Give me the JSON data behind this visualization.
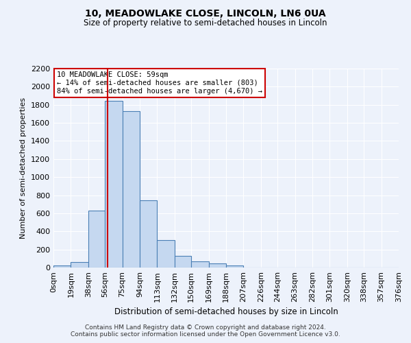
{
  "title": "10, MEADOWLAKE CLOSE, LINCOLN, LN6 0UA",
  "subtitle": "Size of property relative to semi-detached houses in Lincoln",
  "xlabel": "Distribution of semi-detached houses by size in Lincoln",
  "ylabel": "Number of semi-detached properties",
  "bar_color": "#c5d8f0",
  "bar_edge_color": "#4a7fb5",
  "bin_edges": [
    0,
    19,
    38,
    56,
    75,
    94,
    113,
    132,
    150,
    169,
    188,
    207,
    226,
    244,
    263,
    282,
    301,
    320,
    338,
    357,
    376
  ],
  "bin_labels": [
    "0sqm",
    "19sqm",
    "38sqm",
    "56sqm",
    "75sqm",
    "94sqm",
    "113sqm",
    "132sqm",
    "150sqm",
    "169sqm",
    "188sqm",
    "207sqm",
    "226sqm",
    "244sqm",
    "263sqm",
    "282sqm",
    "301sqm",
    "320sqm",
    "338sqm",
    "357sqm",
    "376sqm"
  ],
  "counts": [
    20,
    60,
    630,
    1840,
    1730,
    740,
    300,
    130,
    70,
    45,
    20,
    0,
    0,
    0,
    0,
    0,
    0,
    0,
    0,
    0
  ],
  "vline_x": 59,
  "vline_color": "#cc0000",
  "annotation_title": "10 MEADOWLAKE CLOSE: 59sqm",
  "annotation_line1": "← 14% of semi-detached houses are smaller (803)",
  "annotation_line2": "84% of semi-detached houses are larger (4,670) →",
  "annotation_box_color": "#ffffff",
  "annotation_box_edge": "#cc0000",
  "ylim": [
    0,
    2200
  ],
  "yticks": [
    0,
    200,
    400,
    600,
    800,
    1000,
    1200,
    1400,
    1600,
    1800,
    2000,
    2200
  ],
  "background_color": "#edf2fb",
  "footer1": "Contains HM Land Registry data © Crown copyright and database right 2024.",
  "footer2": "Contains public sector information licensed under the Open Government Licence v3.0."
}
